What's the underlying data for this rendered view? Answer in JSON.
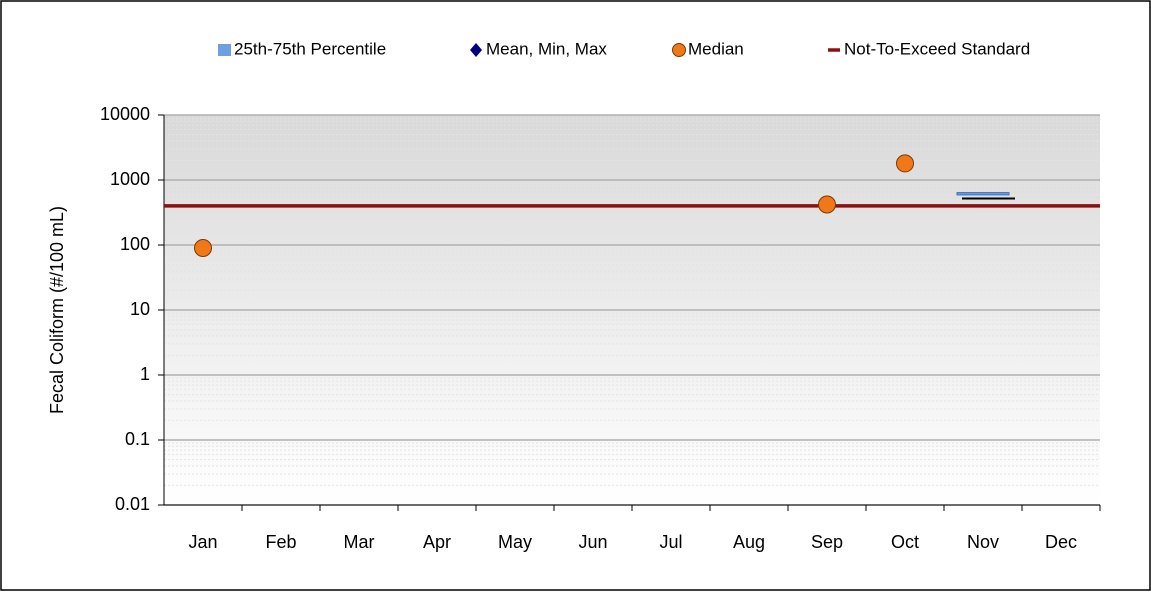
{
  "chart_data": {
    "type": "box",
    "y_label": "Fecal Coliform (#/100 mL)",
    "categories": [
      "Jan",
      "Feb",
      "Mar",
      "Apr",
      "May",
      "Jun",
      "Jul",
      "Aug",
      "Sep",
      "Oct",
      "Nov",
      "Dec"
    ],
    "log_scale": true,
    "ylim": [
      0.01,
      10000
    ],
    "yticks": [
      0.01,
      0.1,
      1,
      10,
      100,
      1000,
      10000
    ],
    "grid": true,
    "legend": "top",
    "series": [
      {
        "name": "25th-75th Percentile",
        "color": "#6f9fe0",
        "low": [
          null,
          null,
          null,
          null,
          null,
          null,
          null,
          null,
          null,
          null,
          590,
          null
        ],
        "high": [
          null,
          null,
          null,
          null,
          null,
          null,
          null,
          null,
          null,
          null,
          640,
          null
        ]
      },
      {
        "name": "Mean, Min, Max",
        "color": "#000080",
        "values": [
          null,
          null,
          null,
          null,
          null,
          null,
          null,
          null,
          null,
          null,
          520,
          null
        ]
      },
      {
        "name": "Median",
        "color": "#f07818",
        "values": [
          90,
          null,
          null,
          null,
          null,
          null,
          null,
          null,
          420,
          1800,
          null,
          null
        ]
      },
      {
        "name": "Not-To-Exceed Standard",
        "color": "#8b1010",
        "value": 400
      }
    ]
  }
}
